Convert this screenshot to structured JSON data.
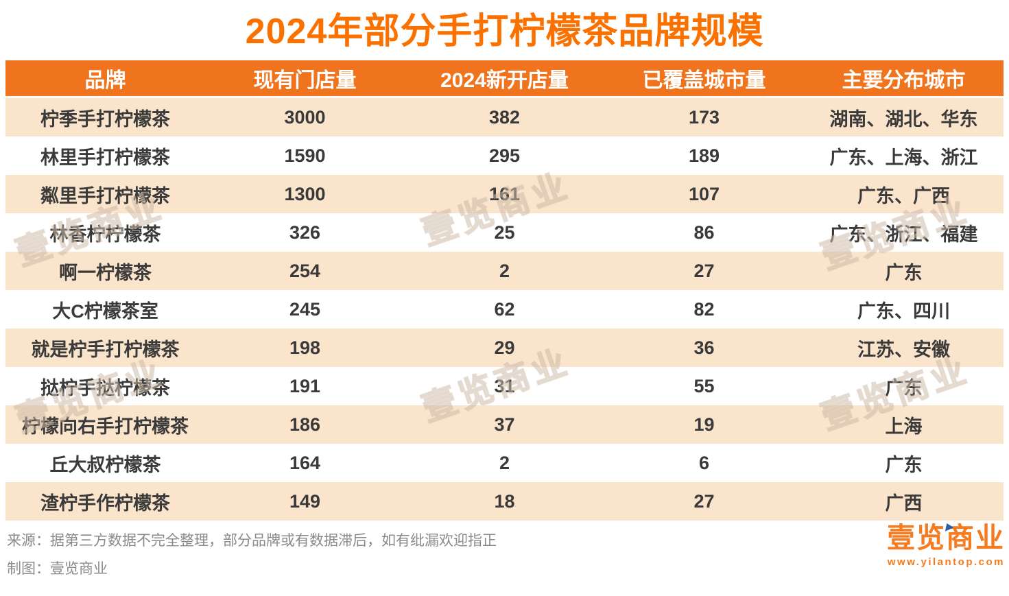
{
  "title": "2024年部分手打柠檬茶品牌规模",
  "table": {
    "headers": [
      "品牌",
      "现有门店量",
      "2024新开店量",
      "已覆盖城市量",
      "主要分布城市"
    ],
    "rows": [
      [
        "柠季手打柠檬茶",
        "3000",
        "382",
        "173",
        "湖南、湖北、华东"
      ],
      [
        "林里手打柠檬茶",
        "1590",
        "295",
        "189",
        "广东、上海、浙江"
      ],
      [
        "粼里手打柠檬茶",
        "1300",
        "161",
        "107",
        "广东、广西"
      ],
      [
        "林香柠柠檬茶",
        "326",
        "25",
        "86",
        "广东、浙江、福建"
      ],
      [
        "啊一柠檬茶",
        "254",
        "2",
        "27",
        "广东"
      ],
      [
        "大C柠檬茶室",
        "245",
        "62",
        "82",
        "广东、四川"
      ],
      [
        "就是柠手打柠檬茶",
        "198",
        "29",
        "36",
        "江苏、安徽"
      ],
      [
        "挞柠手挞柠檬茶",
        "191",
        "31",
        "55",
        "广东"
      ],
      [
        "柠檬向右手打柠檬茶",
        "186",
        "37",
        "19",
        "上海"
      ],
      [
        "丘大叔柠檬茶",
        "164",
        "2",
        "6",
        "广东"
      ],
      [
        "渣柠手作柠檬茶",
        "149",
        "18",
        "27",
        "广西"
      ]
    ]
  },
  "chart_data": {
    "type": "table",
    "title": "2024年部分手打柠檬茶品牌规模",
    "columns": [
      "品牌",
      "现有门店量",
      "2024新开店量",
      "已覆盖城市量",
      "主要分布城市"
    ],
    "rows": [
      {
        "brand": "柠季手打柠檬茶",
        "stores": 3000,
        "new_2024": 382,
        "cities_covered": 173,
        "main_cities": "湖南、湖北、华东"
      },
      {
        "brand": "林里手打柠檬茶",
        "stores": 1590,
        "new_2024": 295,
        "cities_covered": 189,
        "main_cities": "广东、上海、浙江"
      },
      {
        "brand": "粼里手打柠檬茶",
        "stores": 1300,
        "new_2024": 161,
        "cities_covered": 107,
        "main_cities": "广东、广西"
      },
      {
        "brand": "林香柠柠檬茶",
        "stores": 326,
        "new_2024": 25,
        "cities_covered": 86,
        "main_cities": "广东、浙江、福建"
      },
      {
        "brand": "啊一柠檬茶",
        "stores": 254,
        "new_2024": 2,
        "cities_covered": 27,
        "main_cities": "广东"
      },
      {
        "brand": "大C柠檬茶室",
        "stores": 245,
        "new_2024": 62,
        "cities_covered": 82,
        "main_cities": "广东、四川"
      },
      {
        "brand": "就是柠手打柠檬茶",
        "stores": 198,
        "new_2024": 29,
        "cities_covered": 36,
        "main_cities": "江苏、安徽"
      },
      {
        "brand": "挞柠手挞柠檬茶",
        "stores": 191,
        "new_2024": 31,
        "cities_covered": 55,
        "main_cities": "广东"
      },
      {
        "brand": "柠檬向右手打柠檬茶",
        "stores": 186,
        "new_2024": 37,
        "cities_covered": 19,
        "main_cities": "上海"
      },
      {
        "brand": "丘大叔柠檬茶",
        "stores": 164,
        "new_2024": 2,
        "cities_covered": 6,
        "main_cities": "广东"
      },
      {
        "brand": "渣柠手作柠檬茶",
        "stores": 149,
        "new_2024": 18,
        "cities_covered": 27,
        "main_cities": "广西"
      }
    ]
  },
  "footer": {
    "source_line": "来源：据第三方数据不完全整理，部分品牌或有数据滞后，如有纰漏欢迎指正",
    "credit_line": "制图：壹览商业"
  },
  "logo": {
    "name": "壹览商业",
    "website": "www.yilantop.com"
  },
  "watermark_text": "壹览商业",
  "colors": {
    "title": "#FB7100",
    "header_bg": "#F0741E",
    "row_alt_bg": "#FBE4CC",
    "body_text": "#3A3A3A",
    "note_text": "#8A8A8A",
    "logo_orange": "#F47B20",
    "logo_blue": "#2B5F9E"
  }
}
